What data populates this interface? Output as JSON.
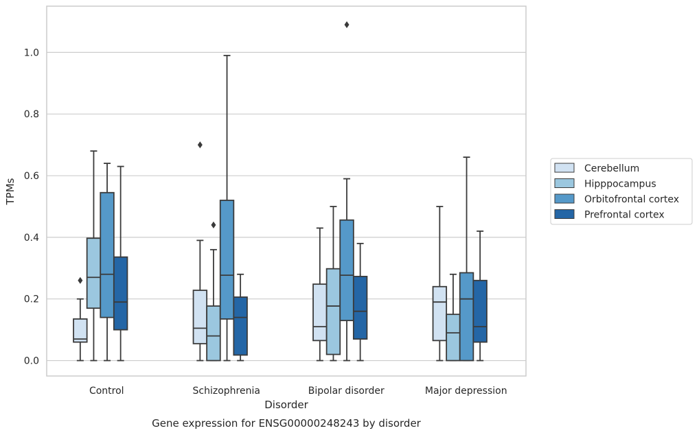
{
  "chart_data": {
    "type": "box",
    "title": "",
    "caption": "Gene expression for ENSG00000248243 by disorder",
    "xlabel": "Disorder",
    "ylabel": "TPMs",
    "ylim": [
      -0.05,
      1.15
    ],
    "yticks": [
      "0.0",
      "0.2",
      "0.4",
      "0.6",
      "0.8",
      "1.0"
    ],
    "categories": [
      "Control",
      "Schizophrenia",
      "Bipolar disorder",
      "Major depression"
    ],
    "grid": "horizontal",
    "legend_position": "right",
    "series": [
      {
        "name": "Cerebellum",
        "color": "#d1e2f2",
        "boxes": [
          {
            "whisker_low": 0.0,
            "q1": 0.06,
            "median": 0.07,
            "q3": 0.135,
            "whisker_high": 0.2,
            "outliers": [
              0.26
            ]
          },
          {
            "whisker_low": 0.0,
            "q1": 0.055,
            "median": 0.105,
            "q3": 0.228,
            "whisker_high": 0.39,
            "outliers": [
              0.7
            ]
          },
          {
            "whisker_low": 0.0,
            "q1": 0.065,
            "median": 0.11,
            "q3": 0.248,
            "whisker_high": 0.43,
            "outliers": []
          },
          {
            "whisker_low": 0.0,
            "q1": 0.065,
            "median": 0.19,
            "q3": 0.24,
            "whisker_high": 0.5,
            "outliers": []
          }
        ]
      },
      {
        "name": "Hipppocampus",
        "color": "#9bc7df",
        "boxes": [
          {
            "whisker_low": 0.0,
            "q1": 0.17,
            "median": 0.27,
            "q3": 0.397,
            "whisker_high": 0.68,
            "outliers": []
          },
          {
            "whisker_low": 0.0,
            "q1": 0.0,
            "median": 0.08,
            "q3": 0.177,
            "whisker_high": 0.36,
            "outliers": [
              0.44
            ]
          },
          {
            "whisker_low": 0.0,
            "q1": 0.02,
            "median": 0.177,
            "q3": 0.298,
            "whisker_high": 0.5,
            "outliers": []
          },
          {
            "whisker_low": 0.0,
            "q1": 0.0,
            "median": 0.09,
            "q3": 0.15,
            "whisker_high": 0.28,
            "outliers": []
          }
        ]
      },
      {
        "name": "Orbitofrontal cortex",
        "color": "#5599c9",
        "boxes": [
          {
            "whisker_low": 0.0,
            "q1": 0.14,
            "median": 0.28,
            "q3": 0.545,
            "whisker_high": 0.64,
            "outliers": []
          },
          {
            "whisker_low": 0.0,
            "q1": 0.135,
            "median": 0.277,
            "q3": 0.52,
            "whisker_high": 0.99,
            "outliers": []
          },
          {
            "whisker_low": 0.0,
            "q1": 0.13,
            "median": 0.277,
            "q3": 0.456,
            "whisker_high": 0.59,
            "outliers": [
              1.09
            ]
          },
          {
            "whisker_low": 0.0,
            "q1": 0.0,
            "median": 0.2,
            "q3": 0.285,
            "whisker_high": 0.66,
            "outliers": []
          }
        ]
      },
      {
        "name": "Prefrontal cortex",
        "color": "#2466a6",
        "boxes": [
          {
            "whisker_low": 0.0,
            "q1": 0.1,
            "median": 0.19,
            "q3": 0.336,
            "whisker_high": 0.63,
            "outliers": []
          },
          {
            "whisker_low": 0.0,
            "q1": 0.018,
            "median": 0.14,
            "q3": 0.206,
            "whisker_high": 0.28,
            "outliers": []
          },
          {
            "whisker_low": 0.0,
            "q1": 0.07,
            "median": 0.16,
            "q3": 0.273,
            "whisker_high": 0.38,
            "outliers": []
          },
          {
            "whisker_low": 0.0,
            "q1": 0.06,
            "median": 0.11,
            "q3": 0.26,
            "whisker_high": 0.42,
            "outliers": []
          }
        ]
      }
    ]
  },
  "colors": {
    "grid": "#cccccc",
    "frame": "#cccccc",
    "box_edge": "#3a3a3a",
    "text": "#262626"
  }
}
